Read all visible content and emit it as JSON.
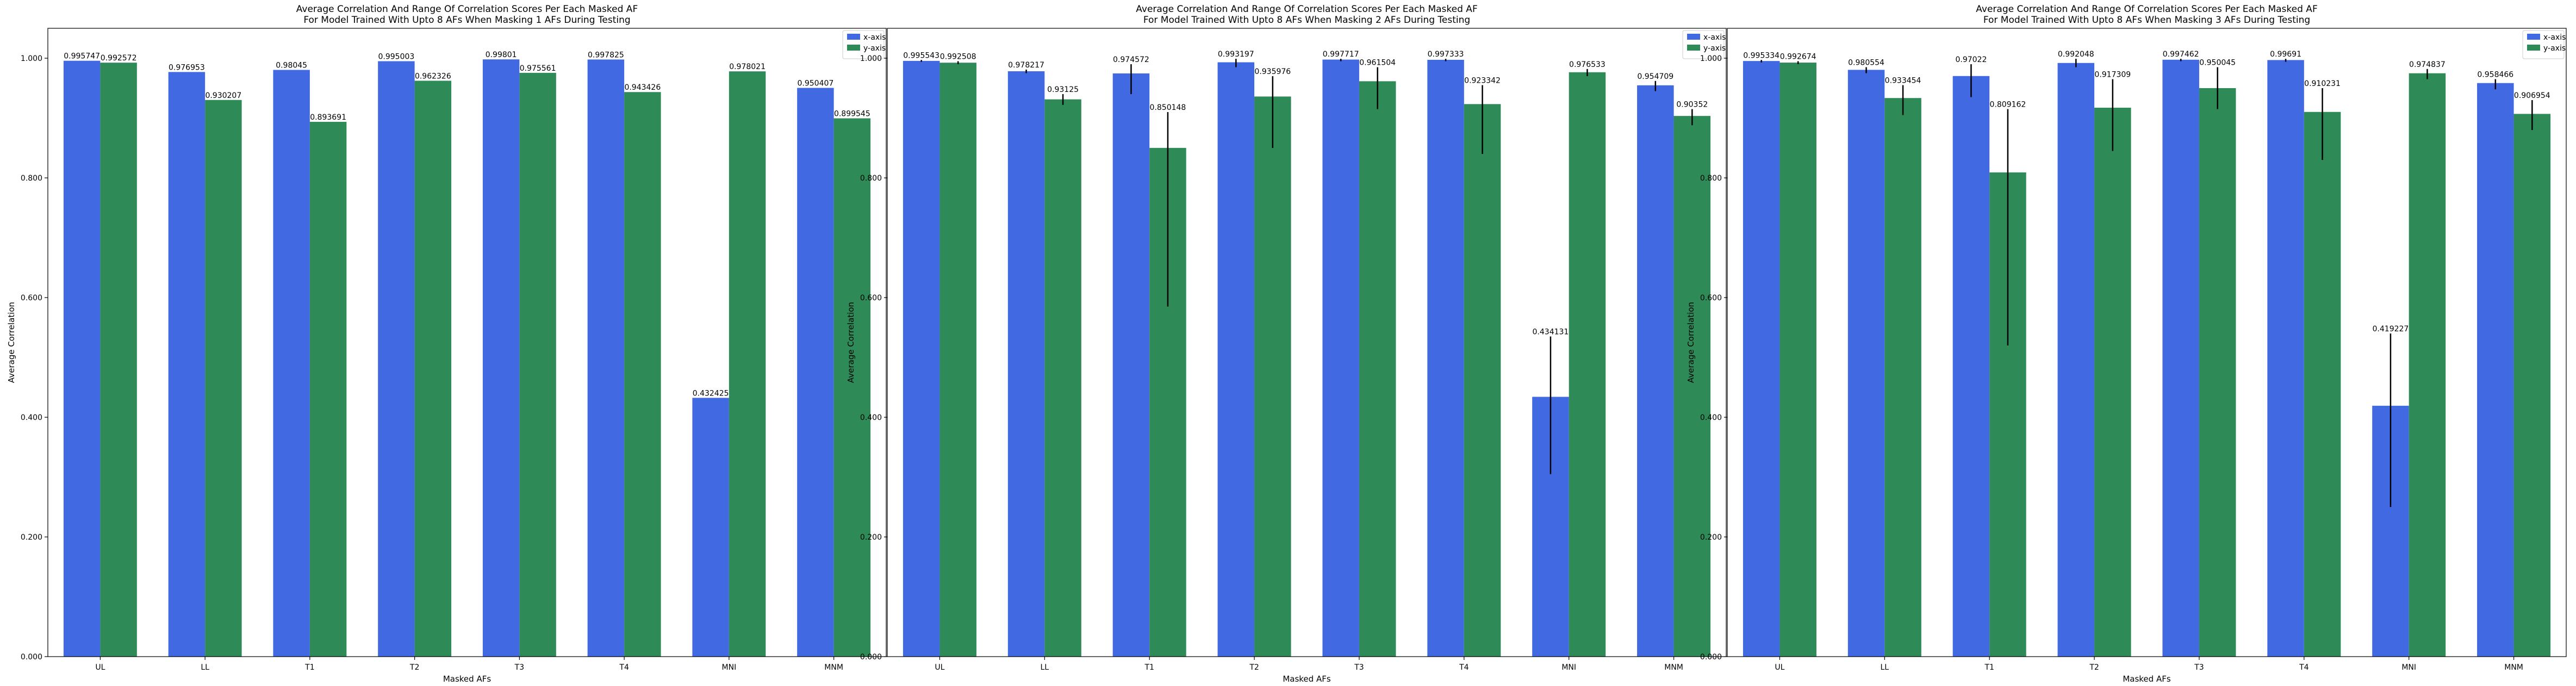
{
  "chart_data": [
    {
      "type": "bar",
      "title": "Average Correlation And Range Of Correlation Scores Per Each Masked AF",
      "subtitle": "For Model Trained With Upto 8 AFs When Masking 1 AFs During Testing",
      "xlabel": "Masked AFs",
      "ylabel": "Average Correlation",
      "categories": [
        "UL",
        "LL",
        "T1",
        "T2",
        "T3",
        "T4",
        "MNI",
        "MNM"
      ],
      "yticks": [
        "0.000",
        "0.200",
        "0.400",
        "0.600",
        "0.800",
        "1.000"
      ],
      "ylim": [
        0,
        1.05
      ],
      "legend_position": "top-right",
      "grid": false,
      "series": [
        {
          "name": "x-axis",
          "color": "#4169e1",
          "values": [
            0.995747,
            0.976953,
            0.98045,
            0.995003,
            0.99801,
            0.997825,
            0.432425,
            0.950407
          ],
          "labels": [
            "0.995747",
            "0.976953",
            "0.98045",
            "0.995003",
            "0.99801",
            "0.997825",
            "0.432425",
            "0.950407"
          ],
          "err_low": [
            0.995747,
            0.976953,
            0.98045,
            0.995003,
            0.99801,
            0.997825,
            0.432425,
            0.950407
          ],
          "err_high": [
            0.995747,
            0.976953,
            0.98045,
            0.995003,
            0.99801,
            0.997825,
            0.432425,
            0.950407
          ]
        },
        {
          "name": "y-axis",
          "color": "#2e8b57",
          "values": [
            0.992572,
            0.930207,
            0.893691,
            0.962326,
            0.975561,
            0.943426,
            0.978021,
            0.899545
          ],
          "labels": [
            "0.992572",
            "0.930207",
            "0.893691",
            "0.962326",
            "0.975561",
            "0.943426",
            "0.978021",
            "0.899545"
          ],
          "err_low": [
            0.992572,
            0.930207,
            0.893691,
            0.962326,
            0.975561,
            0.943426,
            0.978021,
            0.899545
          ],
          "err_high": [
            0.992572,
            0.930207,
            0.893691,
            0.962326,
            0.975561,
            0.943426,
            0.978021,
            0.899545
          ]
        }
      ]
    },
    {
      "type": "bar",
      "title": "Average Correlation And Range Of Correlation Scores Per Each Masked AF",
      "subtitle": "For Model Trained With Upto 8 AFs When Masking 2 AFs During Testing",
      "xlabel": "Masked AFs",
      "ylabel": "Average Correlation",
      "categories": [
        "UL",
        "LL",
        "T1",
        "T2",
        "T3",
        "T4",
        "MNI",
        "MNM"
      ],
      "yticks": [
        "0.000",
        "0.200",
        "0.400",
        "0.600",
        "0.800",
        "1.000"
      ],
      "ylim": [
        0,
        1.05
      ],
      "legend_position": "top-right",
      "grid": false,
      "series": [
        {
          "name": "x-axis",
          "color": "#4169e1",
          "values": [
            0.995543,
            0.978217,
            0.974572,
            0.993197,
            0.997717,
            0.997333,
            0.434131,
            0.954709
          ],
          "labels": [
            "0.995543",
            "0.978217",
            "0.974572",
            "0.993197",
            "0.997717",
            "0.997333",
            "0.434131",
            "0.954709"
          ],
          "err_low": [
            0.994,
            0.975,
            0.94,
            0.985,
            0.995,
            0.995,
            0.305,
            0.945
          ],
          "err_high": [
            0.997,
            0.981,
            0.99,
            0.999,
            0.999,
            0.999,
            0.535,
            0.962
          ]
        },
        {
          "name": "y-axis",
          "color": "#2e8b57",
          "values": [
            0.992508,
            0.93125,
            0.850148,
            0.935976,
            0.961504,
            0.923342,
            0.976533,
            0.90352
          ],
          "labels": [
            "0.992508",
            "0.93125",
            "0.850148",
            "0.935976",
            "0.961504",
            "0.923342",
            "0.976533",
            "0.90352"
          ],
          "err_low": [
            0.99,
            0.922,
            0.585,
            0.85,
            0.915,
            0.84,
            0.97,
            0.888
          ],
          "err_high": [
            0.995,
            0.94,
            0.91,
            0.97,
            0.985,
            0.955,
            0.982,
            0.915
          ]
        }
      ]
    },
    {
      "type": "bar",
      "title": "Average Correlation And Range Of Correlation Scores Per Each Masked AF",
      "subtitle": "For Model Trained With Upto 8 AFs When Masking 3 AFs During Testing",
      "xlabel": "Masked AFs",
      "ylabel": "Average Correlation",
      "categories": [
        "UL",
        "LL",
        "T1",
        "T2",
        "T3",
        "T4",
        "MNI",
        "MNM"
      ],
      "yticks": [
        "0.000",
        "0.200",
        "0.400",
        "0.600",
        "0.800",
        "1.000"
      ],
      "ylim": [
        0,
        1.05
      ],
      "legend_position": "top-right",
      "grid": false,
      "series": [
        {
          "name": "x-axis",
          "color": "#4169e1",
          "values": [
            0.995334,
            0.980554,
            0.97022,
            0.992048,
            0.997462,
            0.99691,
            0.419227,
            0.958466
          ],
          "labels": [
            "0.995334",
            "0.980554",
            "0.97022",
            "0.992048",
            "0.997462",
            "0.99691",
            "0.419227",
            "0.958466"
          ],
          "err_low": [
            0.993,
            0.975,
            0.935,
            0.985,
            0.995,
            0.994,
            0.25,
            0.948
          ],
          "err_high": [
            0.997,
            0.985,
            0.99,
            0.999,
            0.999,
            0.999,
            0.54,
            0.965
          ]
        },
        {
          "name": "y-axis",
          "color": "#2e8b57",
          "values": [
            0.992674,
            0.933454,
            0.809162,
            0.917309,
            0.950045,
            0.910231,
            0.974837,
            0.906954
          ],
          "labels": [
            "0.992674",
            "0.933454",
            "0.809162",
            "0.917309",
            "0.950045",
            "0.910231",
            "0.974837",
            "0.906954"
          ],
          "err_low": [
            0.99,
            0.905,
            0.52,
            0.845,
            0.915,
            0.83,
            0.965,
            0.88
          ],
          "err_high": [
            0.995,
            0.955,
            0.915,
            0.965,
            0.985,
            0.95,
            0.982,
            0.93
          ]
        }
      ]
    }
  ]
}
